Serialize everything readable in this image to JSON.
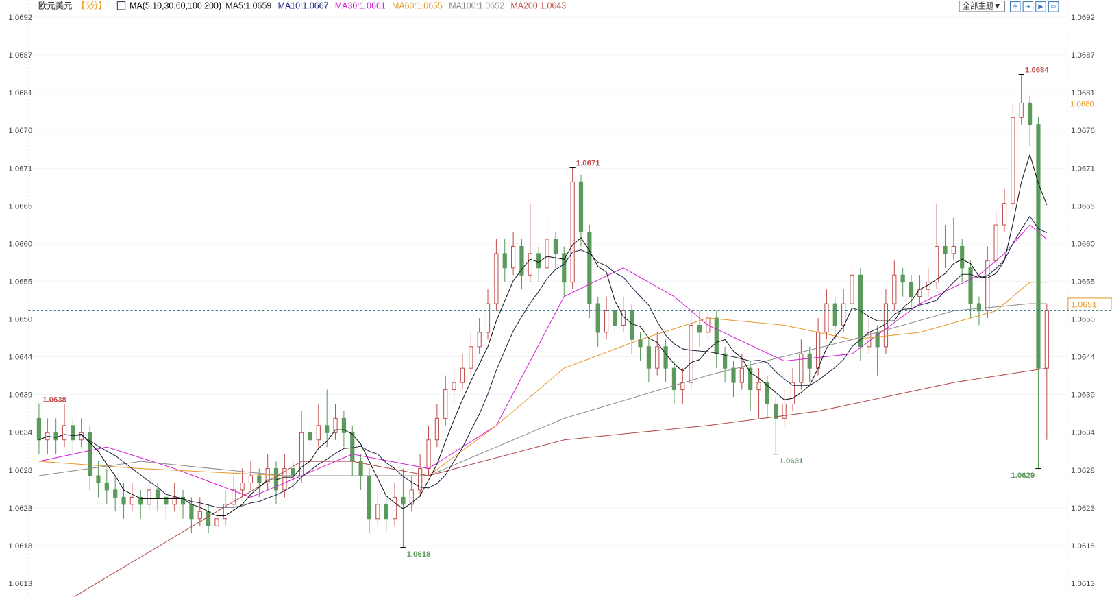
{
  "header": {
    "symbol": "欧元美元",
    "period": "【5分】",
    "ma_title": "MA(5,10,30,60,100,200)",
    "ma_values": [
      {
        "label": "MA5:1.0659",
        "color": "#222222"
      },
      {
        "label": "MA10:1.0667",
        "color": "#1a237e"
      },
      {
        "label": "MA30:1.0661",
        "color": "#d81bd8"
      },
      {
        "label": "MA60:1.0655",
        "color": "#e89a2c"
      },
      {
        "label": "MA100:1.0652",
        "color": "#8c8c8c"
      },
      {
        "label": "MA200:1.0643",
        "color": "#c0504d"
      }
    ]
  },
  "toolbar": {
    "theme_label": "全部主题▼",
    "buttons": [
      {
        "icon": "crosshair-icon",
        "glyph": "✛"
      },
      {
        "icon": "fit-range-icon",
        "glyph": "⇥"
      },
      {
        "icon": "play-icon",
        "glyph": "▶"
      },
      {
        "icon": "scroll-right-icon",
        "glyph": "⇨"
      }
    ]
  },
  "colors": {
    "up": "#c0504d",
    "down": "#5b9a5b",
    "current_line": "#3a7a8c",
    "marker": "#e89a2c"
  },
  "chart_data": {
    "type": "candlestick",
    "ylim": [
      1.0613,
      1.0692
    ],
    "yticks": [
      "1.0692",
      "1.0687",
      "1.0681",
      "1.0676",
      "1.0671",
      "1.0665",
      "1.0660",
      "1.0655",
      "1.0650",
      "1.0644",
      "1.0639",
      "1.0634",
      "1.0628",
      "1.0623",
      "1.0618",
      "1.0613"
    ],
    "current_price": "1.0651",
    "price_marker": "1.0680",
    "annotations": [
      {
        "label": "1.0638",
        "index": 0,
        "price": 1.0638,
        "kind": "high"
      },
      {
        "label": "1.0618",
        "index": 43,
        "price": 1.0618,
        "kind": "low"
      },
      {
        "label": "1.0671",
        "index": 63,
        "price": 1.0671,
        "kind": "high"
      },
      {
        "label": "1.0631",
        "index": 87,
        "price": 1.0631,
        "kind": "low"
      },
      {
        "label": "1.0684",
        "index": 116,
        "price": 1.0684,
        "kind": "high"
      },
      {
        "label": "1.0629",
        "index": 118,
        "price": 1.0629,
        "kind": "low"
      }
    ],
    "candles_ohlc": [
      [
        1.0636,
        1.0638,
        1.0631,
        1.0633
      ],
      [
        1.0633,
        1.0636,
        1.0631,
        1.0634
      ],
      [
        1.0634,
        1.0636,
        1.0631,
        1.0633
      ],
      [
        1.0633,
        1.0638,
        1.0632,
        1.0635
      ],
      [
        1.0635,
        1.0636,
        1.0631,
        1.0633
      ],
      [
        1.0633,
        1.0636,
        1.0632,
        1.0634
      ],
      [
        1.0634,
        1.0635,
        1.0626,
        1.0628
      ],
      [
        1.0628,
        1.063,
        1.0625,
        1.0627
      ],
      [
        1.0627,
        1.0629,
        1.0624,
        1.0626
      ],
      [
        1.0626,
        1.0628,
        1.0623,
        1.0625
      ],
      [
        1.0625,
        1.0627,
        1.0622,
        1.0624
      ],
      [
        1.0624,
        1.0627,
        1.0623,
        1.0625
      ],
      [
        1.0625,
        1.0626,
        1.0622,
        1.0624
      ],
      [
        1.0624,
        1.0628,
        1.0623,
        1.0626
      ],
      [
        1.0626,
        1.0627,
        1.0623,
        1.0625
      ],
      [
        1.0625,
        1.0626,
        1.0622,
        1.0624
      ],
      [
        1.0624,
        1.0627,
        1.0623,
        1.0625
      ],
      [
        1.0625,
        1.0626,
        1.0622,
        1.0624
      ],
      [
        1.0624,
        1.0625,
        1.062,
        1.0622
      ],
      [
        1.0622,
        1.0625,
        1.0621,
        1.0623
      ],
      [
        1.0623,
        1.0624,
        1.062,
        1.0621
      ],
      [
        1.0621,
        1.0624,
        1.062,
        1.0622
      ],
      [
        1.0622,
        1.0626,
        1.0621,
        1.0624
      ],
      [
        1.0624,
        1.0628,
        1.0623,
        1.0626
      ],
      [
        1.0626,
        1.0629,
        1.0625,
        1.0627
      ],
      [
        1.0627,
        1.063,
        1.0626,
        1.0628
      ],
      [
        1.0628,
        1.0629,
        1.0625,
        1.0627
      ],
      [
        1.0627,
        1.0631,
        1.0626,
        1.0629
      ],
      [
        1.0629,
        1.063,
        1.0624,
        1.0626
      ],
      [
        1.0626,
        1.0631,
        1.0625,
        1.0629
      ],
      [
        1.0629,
        1.063,
        1.0626,
        1.0628
      ],
      [
        1.0628,
        1.0637,
        1.0627,
        1.0634
      ],
      [
        1.0634,
        1.0636,
        1.0631,
        1.0633
      ],
      [
        1.0633,
        1.0638,
        1.0632,
        1.0635
      ],
      [
        1.0635,
        1.064,
        1.0632,
        1.0634
      ],
      [
        1.0634,
        1.0638,
        1.0633,
        1.0636
      ],
      [
        1.0636,
        1.0637,
        1.0632,
        1.0634
      ],
      [
        1.0634,
        1.0635,
        1.0628,
        1.063
      ],
      [
        1.063,
        1.0631,
        1.0626,
        1.0628
      ],
      [
        1.0628,
        1.0629,
        1.062,
        1.0622
      ],
      [
        1.0622,
        1.0626,
        1.0621,
        1.0624
      ],
      [
        1.0624,
        1.0625,
        1.062,
        1.0622
      ],
      [
        1.0622,
        1.0627,
        1.0621,
        1.0625
      ],
      [
        1.0625,
        1.0629,
        1.0618,
        1.0624
      ],
      [
        1.0624,
        1.0628,
        1.0623,
        1.0626
      ],
      [
        1.0626,
        1.0631,
        1.0625,
        1.0629
      ],
      [
        1.0629,
        1.0635,
        1.0628,
        1.0633
      ],
      [
        1.0633,
        1.0638,
        1.0632,
        1.0636
      ],
      [
        1.0636,
        1.0642,
        1.0635,
        1.064
      ],
      [
        1.064,
        1.0643,
        1.0638,
        1.0641
      ],
      [
        1.0641,
        1.0645,
        1.064,
        1.0643
      ],
      [
        1.0643,
        1.0648,
        1.0642,
        1.0646
      ],
      [
        1.0646,
        1.065,
        1.0645,
        1.0648
      ],
      [
        1.0648,
        1.0654,
        1.0647,
        1.0652
      ],
      [
        1.0652,
        1.0661,
        1.0651,
        1.0659
      ],
      [
        1.0659,
        1.0661,
        1.0655,
        1.0657
      ],
      [
        1.0657,
        1.0662,
        1.0656,
        1.066
      ],
      [
        1.066,
        1.0661,
        1.0654,
        1.0656
      ],
      [
        1.0656,
        1.0666,
        1.0655,
        1.0659
      ],
      [
        1.0659,
        1.066,
        1.0655,
        1.0657
      ],
      [
        1.0657,
        1.0664,
        1.0656,
        1.0661
      ],
      [
        1.0661,
        1.0662,
        1.0657,
        1.0659
      ],
      [
        1.0659,
        1.066,
        1.0653,
        1.0655
      ],
      [
        1.0655,
        1.0671,
        1.0654,
        1.0669
      ],
      [
        1.0669,
        1.067,
        1.066,
        1.0662
      ],
      [
        1.0662,
        1.0663,
        1.065,
        1.0652
      ],
      [
        1.0652,
        1.0653,
        1.0646,
        1.0648
      ],
      [
        1.0648,
        1.0653,
        1.0647,
        1.0651
      ],
      [
        1.0651,
        1.0652,
        1.0647,
        1.0649
      ],
      [
        1.0649,
        1.0653,
        1.0648,
        1.0651
      ],
      [
        1.0651,
        1.0652,
        1.0645,
        1.0647
      ],
      [
        1.0647,
        1.0648,
        1.0644,
        1.0646
      ],
      [
        1.0646,
        1.0647,
        1.0641,
        1.0643
      ],
      [
        1.0643,
        1.0648,
        1.0642,
        1.0646
      ],
      [
        1.0646,
        1.0647,
        1.0641,
        1.0643
      ],
      [
        1.0643,
        1.0644,
        1.0638,
        1.064
      ],
      [
        1.064,
        1.0643,
        1.0638,
        1.0641
      ],
      [
        1.0641,
        1.0651,
        1.064,
        1.0649
      ],
      [
        1.0649,
        1.0651,
        1.0646,
        1.0648
      ],
      [
        1.0648,
        1.0652,
        1.0647,
        1.065
      ],
      [
        1.065,
        1.0651,
        1.0643,
        1.0645
      ],
      [
        1.0645,
        1.0646,
        1.0641,
        1.0643
      ],
      [
        1.0643,
        1.0644,
        1.0639,
        1.0641
      ],
      [
        1.0641,
        1.0645,
        1.064,
        1.0643
      ],
      [
        1.0643,
        1.0644,
        1.0637,
        1.064
      ],
      [
        1.064,
        1.0643,
        1.0636,
        1.0641
      ],
      [
        1.0641,
        1.0642,
        1.0636,
        1.0638
      ],
      [
        1.0638,
        1.0639,
        1.0631,
        1.0636
      ],
      [
        1.0636,
        1.064,
        1.0635,
        1.0638
      ],
      [
        1.0638,
        1.0643,
        1.0637,
        1.0641
      ],
      [
        1.0641,
        1.0647,
        1.064,
        1.0645
      ],
      [
        1.0645,
        1.0646,
        1.0641,
        1.0643
      ],
      [
        1.0643,
        1.065,
        1.0642,
        1.0648
      ],
      [
        1.0648,
        1.0654,
        1.0647,
        1.0652
      ],
      [
        1.0652,
        1.0653,
        1.0647,
        1.0649
      ],
      [
        1.0649,
        1.0654,
        1.0648,
        1.0652
      ],
      [
        1.0652,
        1.0658,
        1.0651,
        1.0656
      ],
      [
        1.0656,
        1.0657,
        1.0644,
        1.0646
      ],
      [
        1.0646,
        1.065,
        1.0645,
        1.0648
      ],
      [
        1.0648,
        1.0649,
        1.0642,
        1.0646
      ],
      [
        1.0646,
        1.0654,
        1.0645,
        1.0652
      ],
      [
        1.0652,
        1.0658,
        1.0651,
        1.0656
      ],
      [
        1.0656,
        1.0657,
        1.0653,
        1.0655
      ],
      [
        1.0655,
        1.0656,
        1.0651,
        1.0653
      ],
      [
        1.0653,
        1.0656,
        1.0652,
        1.0654
      ],
      [
        1.0654,
        1.0657,
        1.0653,
        1.0655
      ],
      [
        1.0655,
        1.0666,
        1.0654,
        1.066
      ],
      [
        1.066,
        1.0663,
        1.0657,
        1.0659
      ],
      [
        1.0659,
        1.0664,
        1.0658,
        1.066
      ],
      [
        1.066,
        1.0661,
        1.0655,
        1.0657
      ],
      [
        1.0657,
        1.0658,
        1.065,
        1.0652
      ],
      [
        1.0652,
        1.0653,
        1.0649,
        1.0651
      ],
      [
        1.0651,
        1.066,
        1.065,
        1.0658
      ],
      [
        1.0658,
        1.0665,
        1.0657,
        1.0663
      ],
      [
        1.0663,
        1.0668,
        1.0662,
        1.0666
      ],
      [
        1.0666,
        1.068,
        1.0665,
        1.0678
      ],
      [
        1.0678,
        1.0684,
        1.0677,
        1.068
      ],
      [
        1.068,
        1.0681,
        1.0674,
        1.0677
      ],
      [
        1.0677,
        1.0678,
        1.0629,
        1.0643
      ],
      [
        1.0643,
        1.0652,
        1.0633,
        1.0651
      ]
    ],
    "ma_series": [
      {
        "name": "MA30",
        "color": "#d81bd8",
        "points": [
          [
            0,
            1.063
          ],
          [
            8,
            1.0632
          ],
          [
            16,
            1.0629
          ],
          [
            25,
            1.0625
          ],
          [
            31,
            1.0628
          ],
          [
            37,
            1.0631
          ],
          [
            46,
            1.0629
          ],
          [
            54,
            1.0635
          ],
          [
            58,
            1.0644
          ],
          [
            62,
            1.0653
          ],
          [
            69,
            1.0657
          ],
          [
            75,
            1.0653
          ],
          [
            79,
            1.0649
          ],
          [
            88,
            1.0644
          ],
          [
            96,
            1.0645
          ],
          [
            104,
            1.0652
          ],
          [
            111,
            1.0656
          ],
          [
            114,
            1.0659
          ],
          [
            117,
            1.0663
          ],
          [
            119,
            1.0661
          ]
        ]
      },
      {
        "name": "MA60",
        "color": "#e89a2c",
        "points": [
          [
            0,
            1.063
          ],
          [
            12,
            1.0629
          ],
          [
            29,
            1.0628
          ],
          [
            46,
            1.0628
          ],
          [
            54,
            1.0635
          ],
          [
            62,
            1.0643
          ],
          [
            71,
            1.0647
          ],
          [
            79,
            1.065
          ],
          [
            88,
            1.0649
          ],
          [
            96,
            1.0647
          ],
          [
            104,
            1.0648
          ],
          [
            113,
            1.0651
          ],
          [
            117,
            1.0655
          ],
          [
            119,
            1.0655
          ]
        ]
      },
      {
        "name": "MA100",
        "color": "#8c8c8c",
        "points": [
          [
            0,
            1.0628
          ],
          [
            12,
            1.063
          ],
          [
            29,
            1.0628
          ],
          [
            46,
            1.0628
          ],
          [
            62,
            1.0636
          ],
          [
            79,
            1.0642
          ],
          [
            96,
            1.0647
          ],
          [
            108,
            1.0651
          ],
          [
            117,
            1.0652
          ],
          [
            119,
            1.0652
          ]
        ]
      },
      {
        "name": "MA200",
        "color": "#b04848",
        "points": [
          [
            4,
            1.0611
          ],
          [
            21,
            1.0623
          ],
          [
            31,
            1.063
          ],
          [
            37,
            1.063
          ],
          [
            46,
            1.0628
          ],
          [
            62,
            1.0633
          ],
          [
            79,
            1.0635
          ],
          [
            92,
            1.0637
          ],
          [
            108,
            1.0641
          ],
          [
            119,
            1.0643
          ]
        ]
      }
    ],
    "computed_ma": [
      {
        "name": "MA5",
        "period": 5,
        "color": "#111111"
      },
      {
        "name": "MA10",
        "period": 10,
        "color": "#222244"
      }
    ]
  }
}
